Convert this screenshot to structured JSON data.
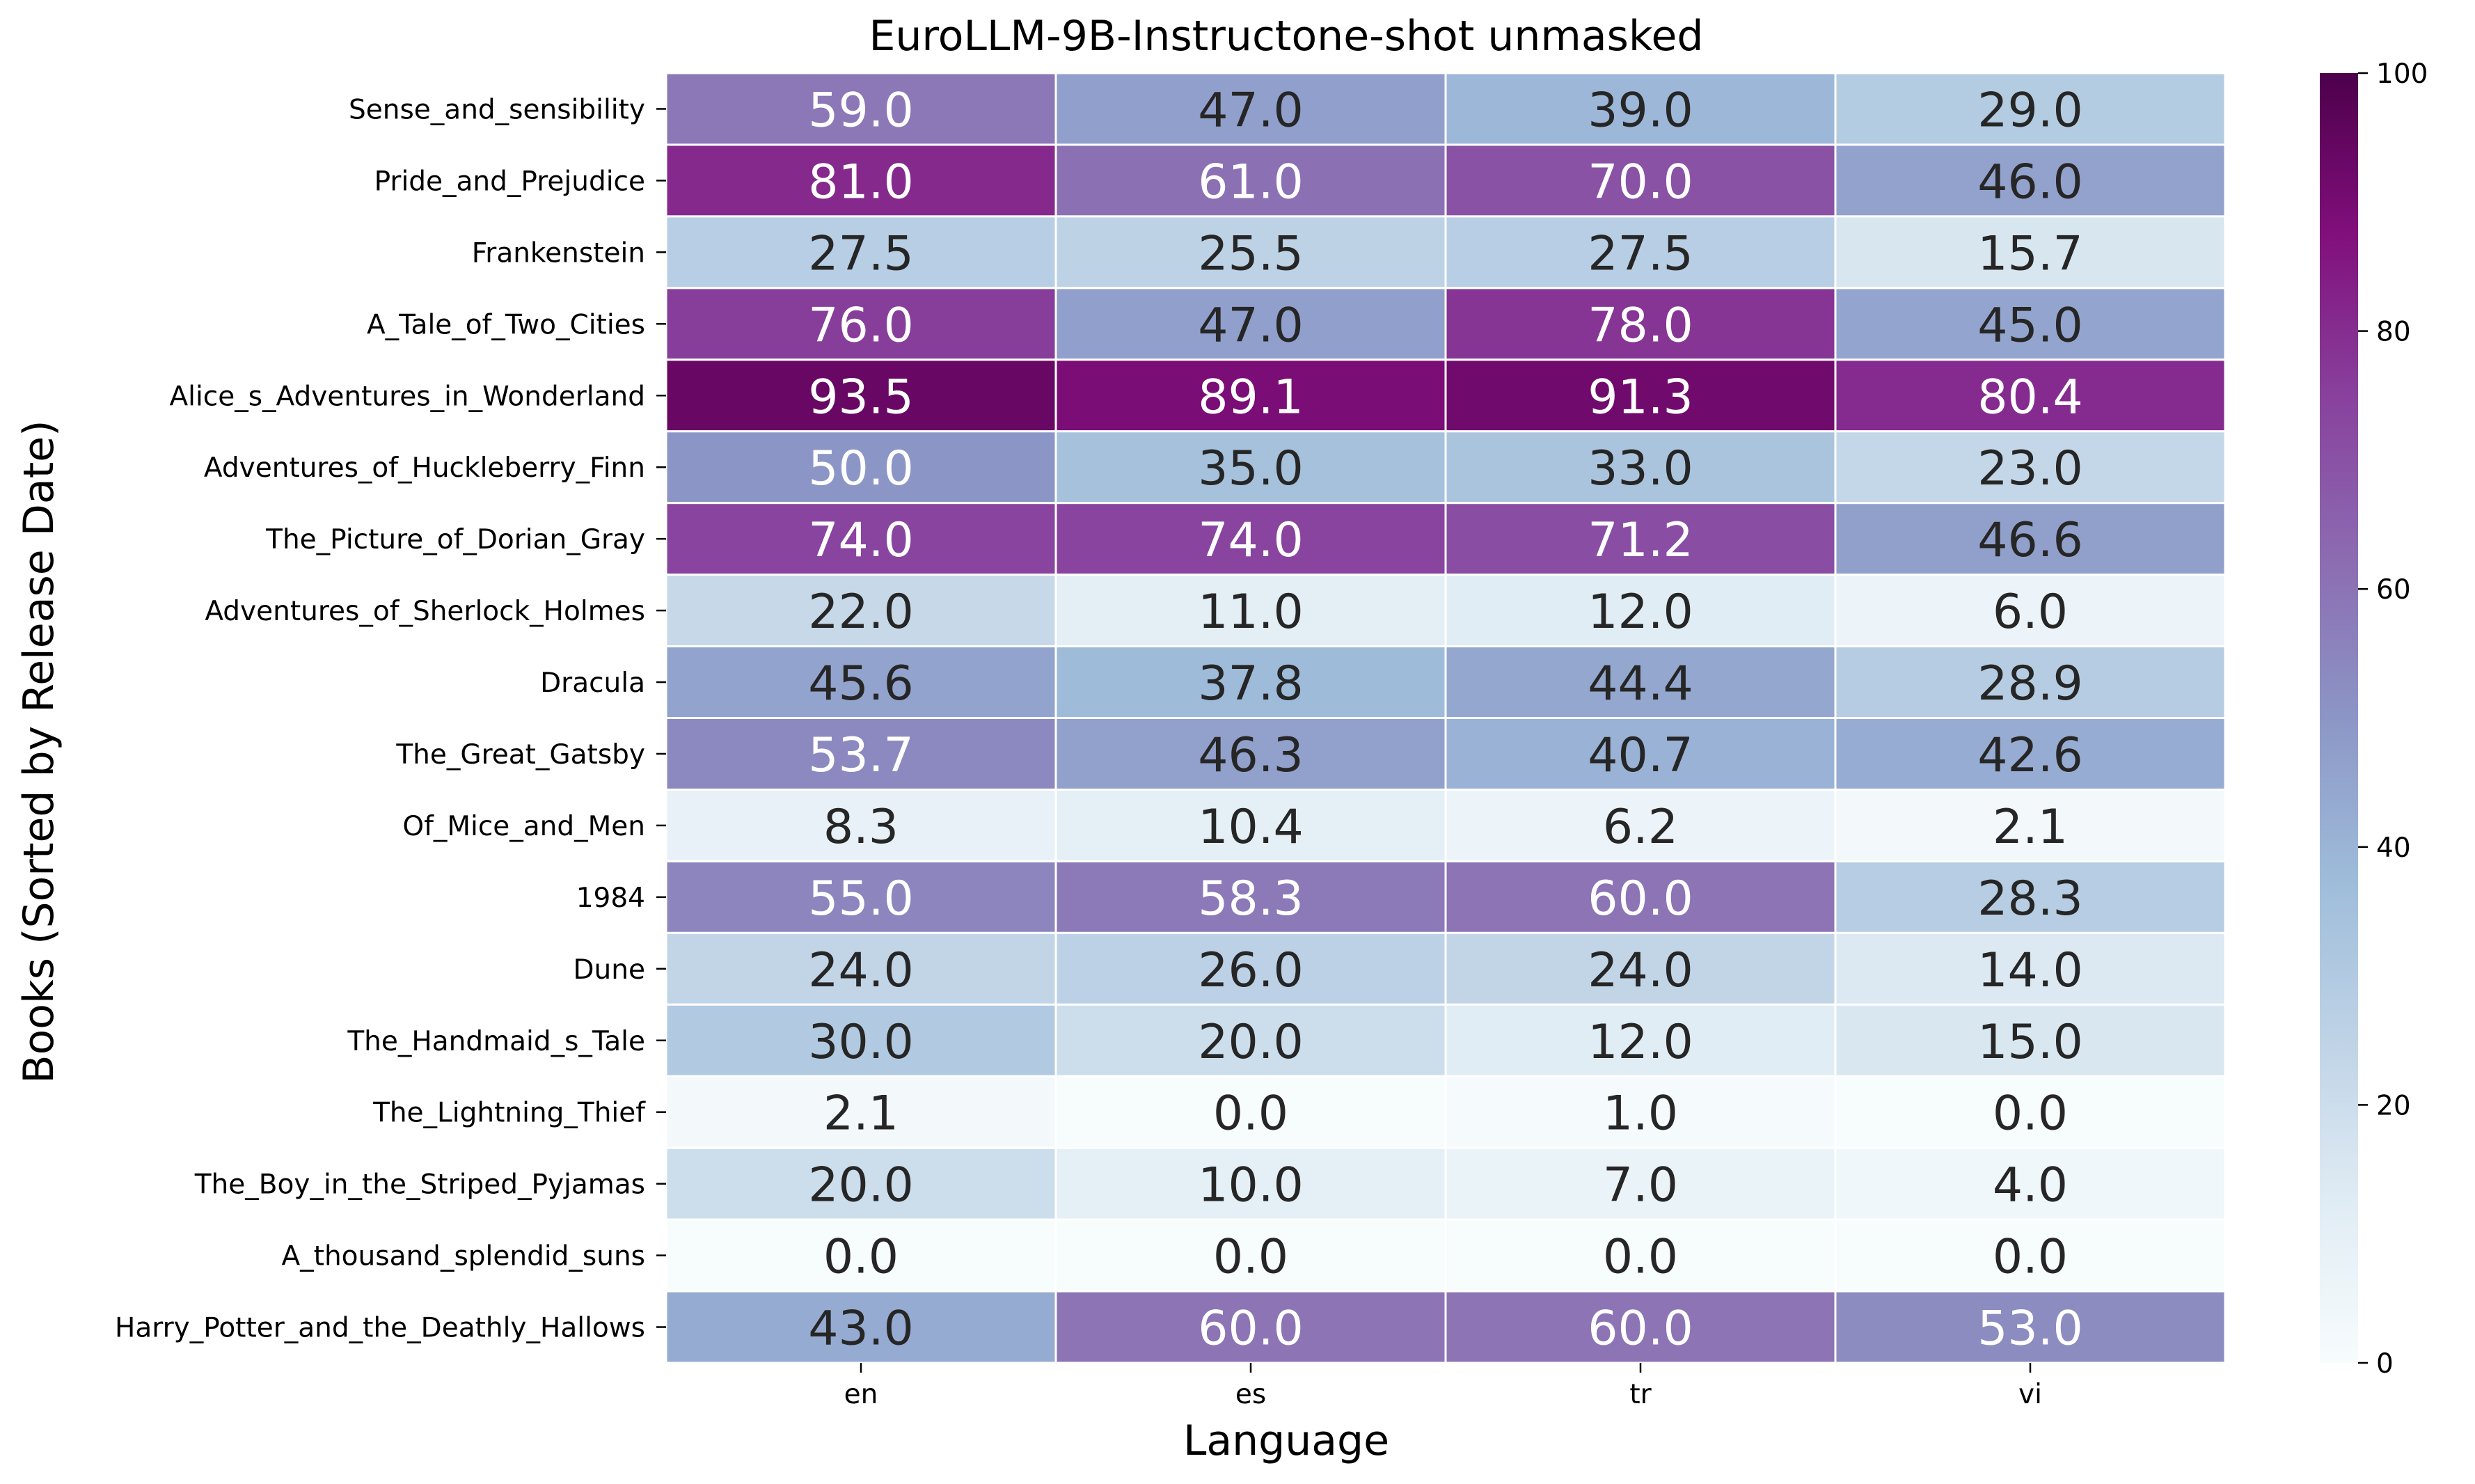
{
  "chart_data": {
    "type": "heatmap",
    "title": "EuroLLM-9B-Instructone-shot unmasked",
    "xlabel": "Language",
    "ylabel": "Books (Sorted by Release Date)",
    "x_categories": [
      "en",
      "es",
      "tr",
      "vi"
    ],
    "y_categories": [
      "Sense_and_sensibility",
      "Pride_and_Prejudice",
      "Frankenstein",
      "A_Tale_of_Two_Cities",
      "Alice_s_Adventures_in_Wonderland",
      "Adventures_of_Huckleberry_Finn",
      "The_Picture_of_Dorian_Gray",
      "Adventures_of_Sherlock_Holmes",
      "Dracula",
      "The_Great_Gatsby",
      "Of_Mice_and_Men",
      "1984",
      "Dune",
      "The_Handmaid_s_Tale",
      "The_Lightning_Thief",
      "The_Boy_in_the_Striped_Pyjamas",
      "A_thousand_splendid_suns",
      "Harry_Potter_and_the_Deathly_Hallows"
    ],
    "values": [
      [
        59.0,
        47.0,
        39.0,
        29.0
      ],
      [
        81.0,
        61.0,
        70.0,
        46.0
      ],
      [
        27.5,
        25.5,
        27.5,
        15.7
      ],
      [
        76.0,
        47.0,
        78.0,
        45.0
      ],
      [
        93.5,
        89.1,
        91.3,
        80.4
      ],
      [
        50.0,
        35.0,
        33.0,
        23.0
      ],
      [
        74.0,
        74.0,
        71.2,
        46.6
      ],
      [
        22.0,
        11.0,
        12.0,
        6.0
      ],
      [
        45.6,
        37.8,
        44.4,
        28.9
      ],
      [
        53.7,
        46.3,
        40.7,
        42.6
      ],
      [
        8.3,
        10.4,
        6.2,
        2.1
      ],
      [
        55.0,
        58.3,
        60.0,
        28.3
      ],
      [
        24.0,
        26.0,
        24.0,
        14.0
      ],
      [
        30.0,
        20.0,
        12.0,
        15.0
      ],
      [
        2.1,
        0.0,
        1.0,
        0.0
      ],
      [
        20.0,
        10.0,
        7.0,
        4.0
      ],
      [
        0.0,
        0.0,
        0.0,
        0.0
      ],
      [
        43.0,
        60.0,
        60.0,
        53.0
      ]
    ],
    "value_format": "0.0",
    "colormap": "BuPu",
    "vmin": 0,
    "vmax": 100,
    "colorbar_ticks": [
      0,
      20,
      40,
      60,
      80,
      100
    ],
    "colors": {
      "gradient": [
        "#f7fcfd",
        "#e0ecf4",
        "#bfd3e6",
        "#9ebcda",
        "#8c96c6",
        "#8c6bb1",
        "#88419d",
        "#810f7c",
        "#4d004b"
      ],
      "text_dark": "#262626",
      "text_light": "#ffffff",
      "cell_border": "#ffffff"
    }
  }
}
